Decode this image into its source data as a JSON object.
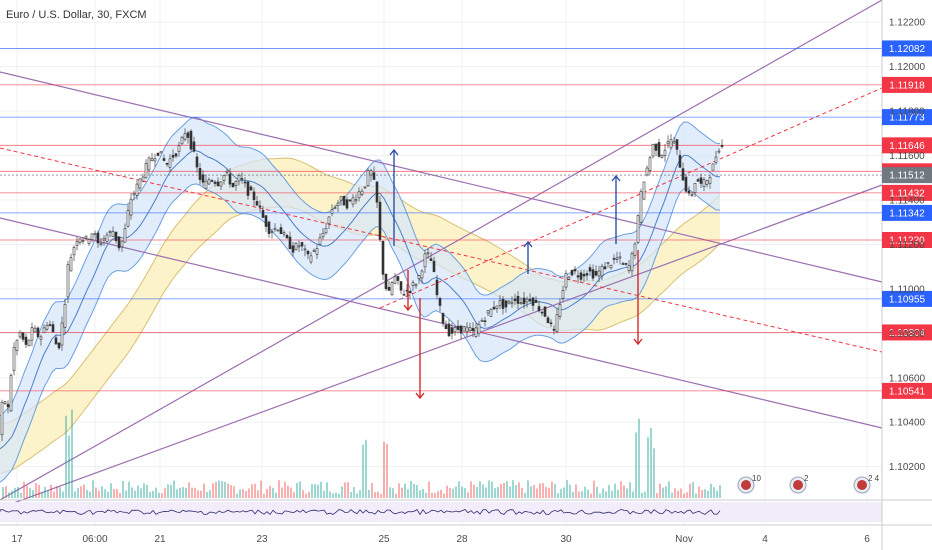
{
  "chart_data": {
    "type": "candlestick",
    "title": "Euro / U.S. Dollar, 30, FXCM",
    "ylim": [
      1.1005,
      1.123
    ],
    "grid": true,
    "x_ticks": [
      "17",
      "06:00",
      "21",
      "23",
      "25",
      "28",
      "30",
      "Nov",
      "4",
      "6"
    ],
    "y_ticks": [
      "1.12200",
      "1.12000",
      "1.11800",
      "1.11600",
      "1.11400",
      "1.11200",
      "1.11000",
      "1.10800",
      "1.10600",
      "1.10400",
      "1.10200"
    ],
    "price_levels": [
      {
        "label": "1.12082",
        "value": 1.12082,
        "color": "#2962ff"
      },
      {
        "label": "1.11918",
        "value": 1.11918,
        "color": "#f23645"
      },
      {
        "label": "1.11773",
        "value": 1.11773,
        "color": "#2962ff"
      },
      {
        "label": "1.11646",
        "value": 1.11646,
        "color": "#f23645"
      },
      {
        "label": "1.11529",
        "value": 1.11529,
        "color": "#f23645"
      },
      {
        "label": "1.11512",
        "value": 1.11512,
        "color": "#707880"
      },
      {
        "label": "1.11432",
        "value": 1.11432,
        "color": "#f23645"
      },
      {
        "label": "1.11342",
        "value": 1.11342,
        "color": "#2962ff"
      },
      {
        "label": "1.11220",
        "value": 1.1122,
        "color": "#f23645"
      },
      {
        "label": "1.10955",
        "value": 1.10955,
        "color": "#2962ff"
      },
      {
        "label": "1.10804",
        "value": 1.10804,
        "color": "#f23645"
      },
      {
        "label": "1.10541",
        "value": 1.10541,
        "color": "#f23645"
      }
    ],
    "price_path": [
      [
        0,
        1.1028
      ],
      [
        5,
        1.1052
      ],
      [
        10,
        1.1046
      ],
      [
        15,
        1.1072
      ],
      [
        22,
        1.108
      ],
      [
        28,
        1.1074
      ],
      [
        35,
        1.1082
      ],
      [
        42,
        1.1078
      ],
      [
        50,
        1.1086
      ],
      [
        55,
        1.108
      ],
      [
        60,
        1.1072
      ],
      [
        66,
        1.109
      ],
      [
        70,
        1.111
      ],
      [
        75,
        1.1118
      ],
      [
        80,
        1.1124
      ],
      [
        88,
        1.1122
      ],
      [
        95,
        1.1126
      ],
      [
        100,
        1.112
      ],
      [
        108,
        1.1124
      ],
      [
        115,
        1.1126
      ],
      [
        122,
        1.1118
      ],
      [
        128,
        1.1128
      ],
      [
        132,
        1.114
      ],
      [
        138,
        1.1145
      ],
      [
        145,
        1.1152
      ],
      [
        152,
        1.1158
      ],
      [
        160,
        1.1162
      ],
      [
        168,
        1.1156
      ],
      [
        175,
        1.116
      ],
      [
        182,
        1.1164
      ],
      [
        188,
        1.1172
      ],
      [
        195,
        1.1162
      ],
      [
        200,
        1.1152
      ],
      [
        206,
        1.1146
      ],
      [
        212,
        1.115
      ],
      [
        220,
        1.1148
      ],
      [
        228,
        1.1152
      ],
      [
        235,
        1.1146
      ],
      [
        242,
        1.115
      ],
      [
        250,
        1.1144
      ],
      [
        258,
        1.114
      ],
      [
        265,
        1.1132
      ],
      [
        272,
        1.1126
      ],
      [
        280,
        1.1128
      ],
      [
        288,
        1.1122
      ],
      [
        295,
        1.1118
      ],
      [
        302,
        1.112
      ],
      [
        310,
        1.1114
      ],
      [
        318,
        1.1118
      ],
      [
        326,
        1.1126
      ],
      [
        334,
        1.1136
      ],
      [
        342,
        1.114
      ],
      [
        350,
        1.1138
      ],
      [
        358,
        1.1142
      ],
      [
        366,
        1.1146
      ],
      [
        372,
        1.1154
      ],
      [
        378,
        1.1144
      ],
      [
        384,
        1.111
      ],
      [
        390,
        1.1096
      ],
      [
        396,
        1.1106
      ],
      [
        404,
        1.1098
      ],
      [
        412,
        1.11
      ],
      [
        420,
        1.1104
      ],
      [
        428,
        1.1116
      ],
      [
        434,
        1.1112
      ],
      [
        440,
        1.1094
      ],
      [
        446,
        1.1084
      ],
      [
        452,
        1.108
      ],
      [
        460,
        1.1082
      ],
      [
        468,
        1.1082
      ],
      [
        476,
        1.108
      ],
      [
        484,
        1.1086
      ],
      [
        492,
        1.109
      ],
      [
        500,
        1.1094
      ],
      [
        508,
        1.1092
      ],
      [
        516,
        1.1096
      ],
      [
        524,
        1.1094
      ],
      [
        532,
        1.1096
      ],
      [
        540,
        1.1092
      ],
      [
        548,
        1.1088
      ],
      [
        556,
        1.108
      ],
      [
        562,
        1.1094
      ],
      [
        568,
        1.1106
      ],
      [
        575,
        1.1108
      ],
      [
        582,
        1.1106
      ],
      [
        590,
        1.1108
      ],
      [
        598,
        1.1106
      ],
      [
        606,
        1.111
      ],
      [
        614,
        1.1112
      ],
      [
        620,
        1.1114
      ],
      [
        626,
        1.111
      ],
      [
        632,
        1.111
      ],
      [
        638,
        1.1124
      ],
      [
        644,
        1.1146
      ],
      [
        650,
        1.1156
      ],
      [
        656,
        1.1166
      ],
      [
        662,
        1.116
      ],
      [
        668,
        1.1164
      ],
      [
        674,
        1.1168
      ],
      [
        680,
        1.116
      ],
      [
        686,
        1.1148
      ],
      [
        692,
        1.114
      ],
      [
        698,
        1.115
      ],
      [
        704,
        1.1146
      ],
      [
        710,
        1.115
      ],
      [
        716,
        1.1156
      ],
      [
        720,
        1.1164
      ]
    ]
  },
  "events": [
    "10",
    "2",
    "2 4"
  ],
  "colors": {
    "bull": "#26a69a",
    "bear": "#ef5350",
    "wick": "#444444",
    "trend": "#9c6fb0",
    "dashed_red": "#f23645",
    "bb_fill": "#d6e6fb",
    "bb_line": "#6aa0e0",
    "yb_fill": "#fbf1c2",
    "yb_line": "#d9c070",
    "arrow_up": "#2f4fa8",
    "arrow_down": "#d22a2a"
  }
}
